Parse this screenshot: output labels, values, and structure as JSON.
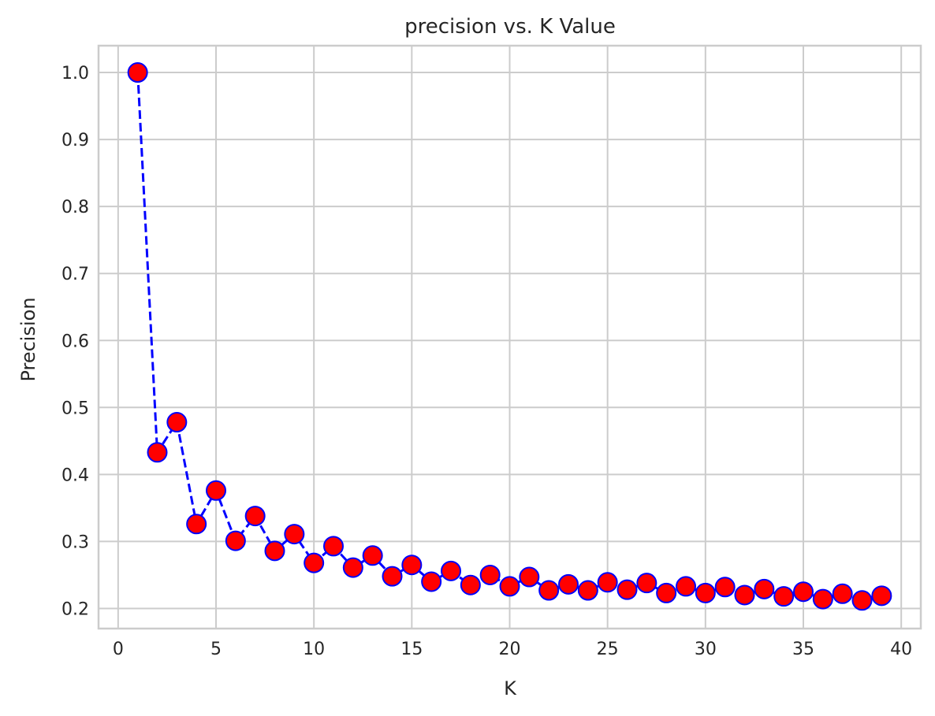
{
  "chart_data": {
    "type": "line",
    "title": "precision vs. K Value",
    "xlabel": "K",
    "ylabel": "Precision",
    "xlim": [
      -1,
      41
    ],
    "ylim": [
      0.17,
      1.04
    ],
    "xticks": [
      0,
      5,
      10,
      15,
      20,
      25,
      30,
      35,
      40
    ],
    "yticks": [
      0.2,
      0.3,
      0.4,
      0.5,
      0.6,
      0.7,
      0.8,
      0.9,
      1.0
    ],
    "xtick_labels": [
      "0",
      "5",
      "10",
      "15",
      "20",
      "25",
      "30",
      "35",
      "40"
    ],
    "ytick_labels": [
      "0.2",
      "0.3",
      "0.4",
      "0.5",
      "0.6",
      "0.7",
      "0.8",
      "0.9",
      "1.0"
    ],
    "grid": true,
    "series": [
      {
        "line_style": "dashed",
        "line_color": "#0000ff",
        "marker": "circle",
        "marker_face_color": "#ff0000",
        "marker_edge_color": "#0000ff",
        "x": [
          1,
          2,
          3,
          4,
          5,
          6,
          7,
          8,
          9,
          10,
          11,
          12,
          13,
          14,
          15,
          16,
          17,
          18,
          19,
          20,
          21,
          22,
          23,
          24,
          25,
          26,
          27,
          28,
          29,
          30,
          31,
          32,
          33,
          34,
          35,
          36,
          37,
          38,
          39
        ],
        "values": [
          1.0,
          0.433,
          0.478,
          0.326,
          0.376,
          0.301,
          0.338,
          0.286,
          0.311,
          0.268,
          0.293,
          0.261,
          0.279,
          0.248,
          0.265,
          0.24,
          0.256,
          0.235,
          0.25,
          0.233,
          0.247,
          0.227,
          0.236,
          0.227,
          0.239,
          0.228,
          0.238,
          0.223,
          0.233,
          0.223,
          0.232,
          0.22,
          0.229,
          0.218,
          0.225,
          0.214,
          0.222,
          0.212,
          0.219
        ]
      }
    ]
  }
}
